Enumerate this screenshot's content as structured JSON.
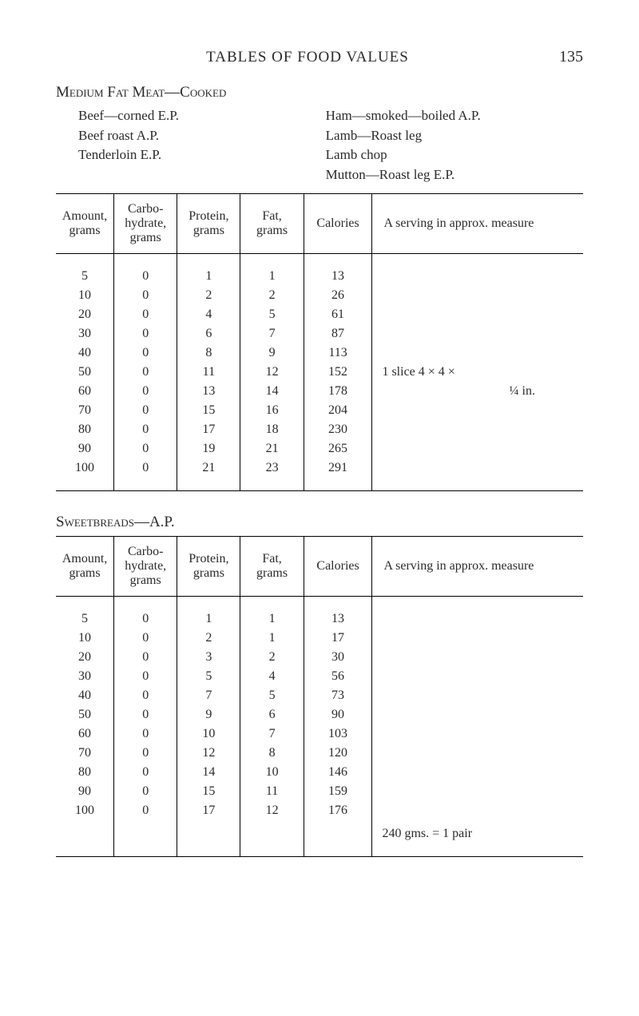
{
  "page": {
    "title": "TABLES OF FOOD VALUES",
    "number": "135"
  },
  "section1": {
    "heading": "Medium Fat Meat—Cooked",
    "left_items": [
      "Beef—corned E.P.",
      "Beef roast A.P.",
      "Tenderloin E.P."
    ],
    "right_items": [
      "Ham—smoked—boiled A.P.",
      "Lamb—Roast leg",
      "Lamb chop",
      "Mutton—Roast leg E.P."
    ]
  },
  "headers": {
    "amount": "Amount, grams",
    "carbo": "Carbo­hydrate, grams",
    "protein": "Protein, grams",
    "fat": "Fat, grams",
    "calories": "Calories",
    "serving": "A serving in approx. measure"
  },
  "table1": {
    "rows": [
      {
        "amount": "5",
        "carbo": "0",
        "protein": "1",
        "fat": "1",
        "cal": "13"
      },
      {
        "amount": "10",
        "carbo": "0",
        "protein": "2",
        "fat": "2",
        "cal": "26"
      },
      {
        "amount": "20",
        "carbo": "0",
        "protein": "4",
        "fat": "5",
        "cal": "61"
      },
      {
        "amount": "30",
        "carbo": "0",
        "protein": "6",
        "fat": "7",
        "cal": "87"
      },
      {
        "amount": "40",
        "carbo": "0",
        "protein": "8",
        "fat": "9",
        "cal": "113"
      },
      {
        "amount": "50",
        "carbo": "0",
        "protein": "11",
        "fat": "12",
        "cal": "152"
      },
      {
        "amount": "60",
        "carbo": "0",
        "protein": "13",
        "fat": "14",
        "cal": "178"
      },
      {
        "amount": "70",
        "carbo": "0",
        "protein": "15",
        "fat": "16",
        "cal": "204"
      },
      {
        "amount": "80",
        "carbo": "0",
        "protein": "17",
        "fat": "18",
        "cal": "230"
      },
      {
        "amount": "90",
        "carbo": "0",
        "protein": "19",
        "fat": "21",
        "cal": "265"
      },
      {
        "amount": "100",
        "carbo": "0",
        "protein": "21",
        "fat": "23",
        "cal": "291"
      }
    ],
    "note_line1": "1 slice 4 × 4 ×",
    "note_line2": "¼ in."
  },
  "section2": {
    "heading": "Sweetbreads—A.P."
  },
  "table2": {
    "rows": [
      {
        "amount": "5",
        "carbo": "0",
        "protein": "1",
        "fat": "1",
        "cal": "13"
      },
      {
        "amount": "10",
        "carbo": "0",
        "protein": "2",
        "fat": "1",
        "cal": "17"
      },
      {
        "amount": "20",
        "carbo": "0",
        "protein": "3",
        "fat": "2",
        "cal": "30"
      },
      {
        "amount": "30",
        "carbo": "0",
        "protein": "5",
        "fat": "4",
        "cal": "56"
      },
      {
        "amount": "40",
        "carbo": "0",
        "protein": "7",
        "fat": "5",
        "cal": "73"
      },
      {
        "amount": "50",
        "carbo": "0",
        "protein": "9",
        "fat": "6",
        "cal": "90"
      },
      {
        "amount": "60",
        "carbo": "0",
        "protein": "10",
        "fat": "7",
        "cal": "103"
      },
      {
        "amount": "70",
        "carbo": "0",
        "protein": "12",
        "fat": "8",
        "cal": "120"
      },
      {
        "amount": "80",
        "carbo": "0",
        "protein": "14",
        "fat": "10",
        "cal": "146"
      },
      {
        "amount": "90",
        "carbo": "0",
        "protein": "15",
        "fat": "11",
        "cal": "159"
      },
      {
        "amount": "100",
        "carbo": "0",
        "protein": "17",
        "fat": "12",
        "cal": "176"
      }
    ],
    "note": "240 gms. = 1 pair"
  }
}
